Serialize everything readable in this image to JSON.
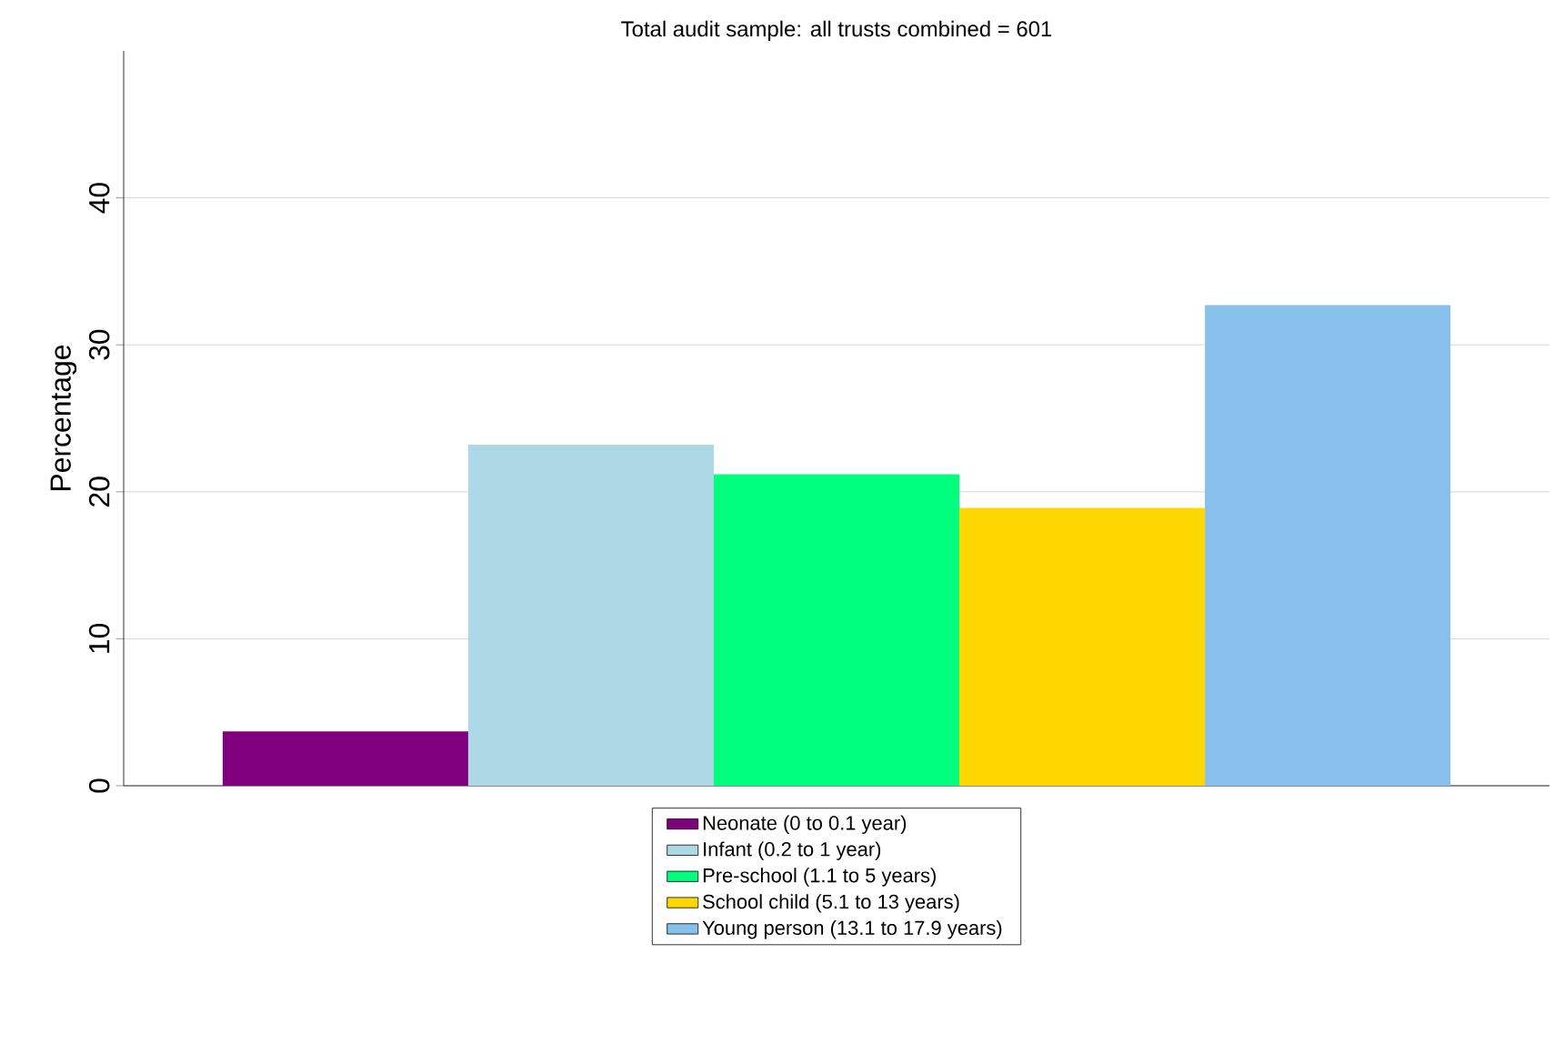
{
  "chart_data": {
    "type": "bar",
    "title": "Total audit sample: all trusts combined = 601",
    "ylabel": "Percentage",
    "categories": [
      null
    ],
    "series": [
      {
        "name": "Neonate (0 to 0.1 year)",
        "color": "#800080",
        "values": [
          3.7
        ]
      },
      {
        "name": "Infant (0.2 to 1 year)",
        "color": "#add8e6",
        "values": [
          23.2
        ]
      },
      {
        "name": "Pre-school (1.1 to 5 years)",
        "color": "#00ff7f",
        "values": [
          21.2
        ]
      },
      {
        "name": "School child (5.1 to 13 years)",
        "color": "#ffd700",
        "values": [
          18.9
        ]
      },
      {
        "name": "Young person (13.1 to 17.9 years)",
        "color": "#87c1eb",
        "values": [
          32.7
        ]
      }
    ],
    "ylim": [
      0,
      50
    ],
    "yticks": [
      0,
      10,
      20,
      30,
      40
    ],
    "grid": "y",
    "legend": "bottom"
  }
}
